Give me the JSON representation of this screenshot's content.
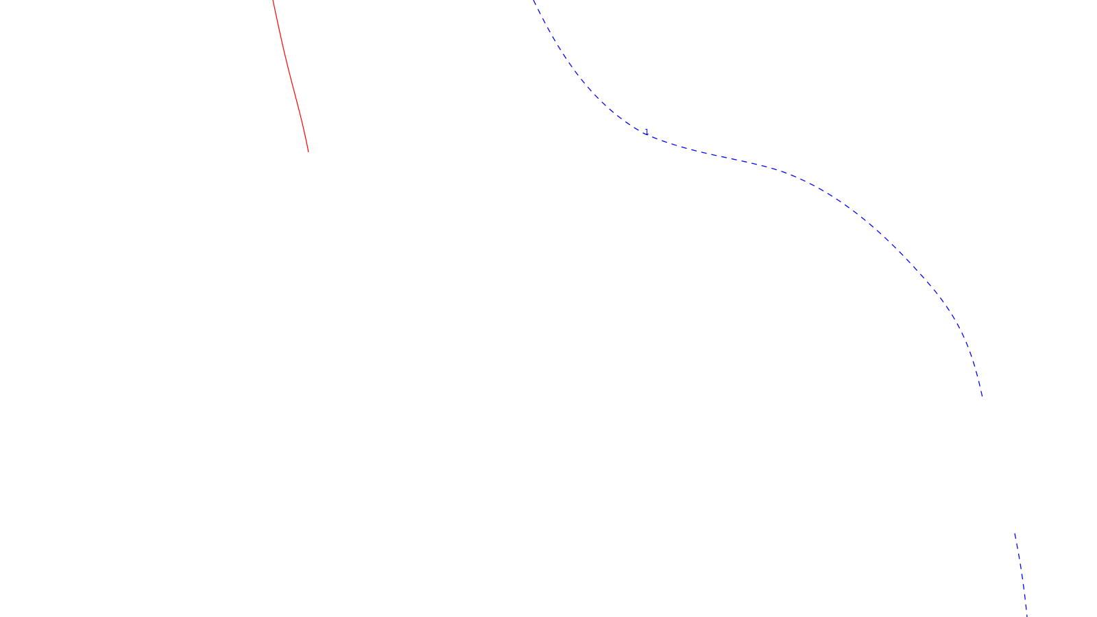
{
  "map": {
    "background_color": "#ffffff",
    "features": {
      "red_line": {
        "color": "#ff0000",
        "style": "solid"
      },
      "blue_contour": {
        "color": "#0000ff",
        "style": "dashed",
        "label": "1"
      },
      "blue_contour_lower": {
        "color": "#0000ff",
        "style": "dashed"
      }
    }
  }
}
